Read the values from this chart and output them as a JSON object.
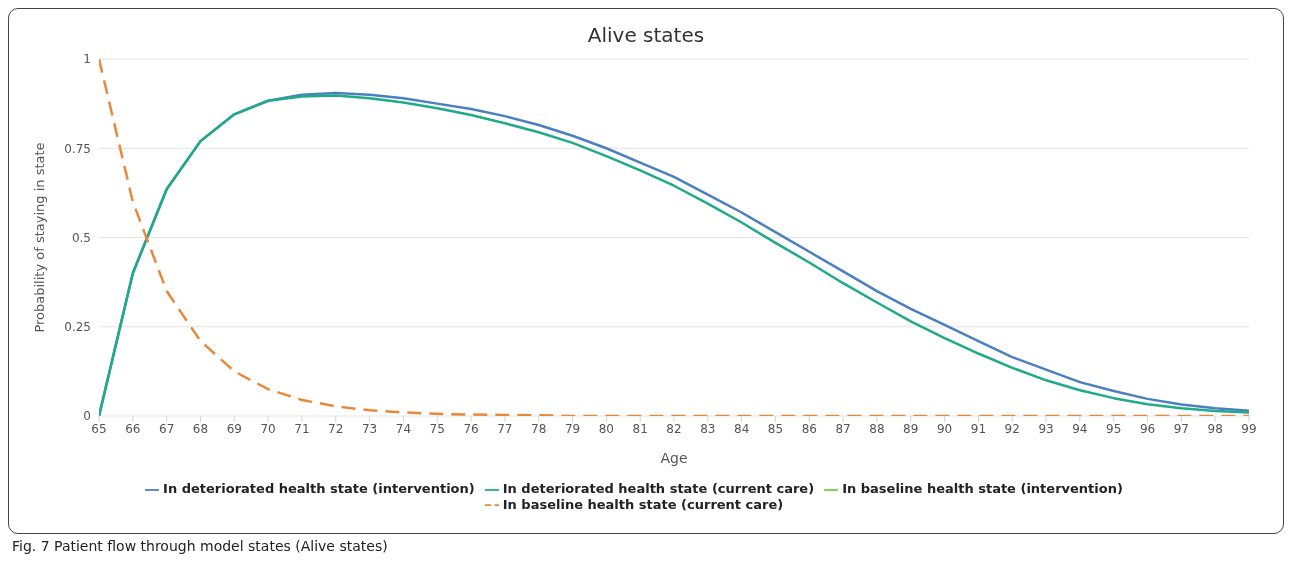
{
  "chart_data": {
    "type": "line",
    "title": "Alive states",
    "xlabel": "Age",
    "ylabel": "Probability of staying in state",
    "annotations": [
      "Fig. 7 Patient flow through model states (Alive states)"
    ],
    "x": [
      65,
      66,
      67,
      68,
      69,
      70,
      71,
      72,
      73,
      74,
      75,
      76,
      77,
      78,
      79,
      80,
      81,
      82,
      83,
      84,
      85,
      86,
      87,
      88,
      89,
      90,
      91,
      92,
      93,
      94,
      95,
      96,
      97,
      98,
      99
    ],
    "series": [
      {
        "name": "In deteriorated health state (intervention)",
        "color": "#4a7fc1",
        "line_style": "solid",
        "values": [
          0,
          0.4,
          0.635,
          0.77,
          0.845,
          0.883,
          0.9,
          0.905,
          0.9,
          0.89,
          0.875,
          0.86,
          0.84,
          0.815,
          0.785,
          0.75,
          0.71,
          0.67,
          0.62,
          0.57,
          0.515,
          0.46,
          0.405,
          0.35,
          0.3,
          0.255,
          0.21,
          0.165,
          0.13,
          0.095,
          0.07,
          0.048,
          0.032,
          0.022,
          0.015
        ]
      },
      {
        "name": "In deteriorated health state (current care)",
        "color": "#1fab89",
        "line_style": "solid",
        "values": [
          0,
          0.4,
          0.635,
          0.77,
          0.845,
          0.883,
          0.895,
          0.898,
          0.89,
          0.878,
          0.862,
          0.843,
          0.82,
          0.795,
          0.765,
          0.728,
          0.688,
          0.645,
          0.595,
          0.542,
          0.485,
          0.43,
          0.372,
          0.318,
          0.265,
          0.218,
          0.175,
          0.135,
          0.1,
          0.072,
          0.05,
          0.033,
          0.022,
          0.014,
          0.01
        ]
      },
      {
        "name": "In baseline health state (intervention)",
        "color": "#7ac943",
        "line_style": "solid",
        "values": [
          null,
          null,
          null,
          null,
          null,
          null,
          null,
          null,
          null,
          null,
          null,
          null,
          null,
          null,
          null,
          null,
          null,
          null,
          null,
          null,
          null,
          null,
          null,
          null,
          null,
          null,
          null,
          null,
          null,
          null,
          null,
          null,
          null,
          null,
          null
        ]
      },
      {
        "name": "In baseline health state (current care)",
        "color": "#e8883a",
        "line_style": "dashed",
        "values": [
          1,
          0.6,
          0.35,
          0.21,
          0.125,
          0.075,
          0.045,
          0.027,
          0.016,
          0.01,
          0.006,
          0.004,
          0.003,
          0.002,
          0,
          0,
          0,
          0,
          0,
          0,
          0,
          0,
          0,
          0,
          0,
          0,
          0,
          0,
          0,
          0,
          0,
          0,
          0,
          0,
          0
        ]
      }
    ],
    "xlim": [
      65,
      99
    ],
    "xticks": [
      65,
      66,
      67,
      68,
      69,
      70,
      71,
      72,
      73,
      74,
      75,
      76,
      77,
      78,
      79,
      80,
      81,
      82,
      83,
      84,
      85,
      86,
      87,
      88,
      89,
      90,
      91,
      92,
      93,
      94,
      95,
      96,
      97,
      98,
      99
    ],
    "ylim": [
      0,
      1
    ],
    "yticks": [
      0,
      0.25,
      0.5,
      0.75,
      1
    ],
    "grid": "y",
    "legend": "bottom",
    "marker": "none"
  }
}
